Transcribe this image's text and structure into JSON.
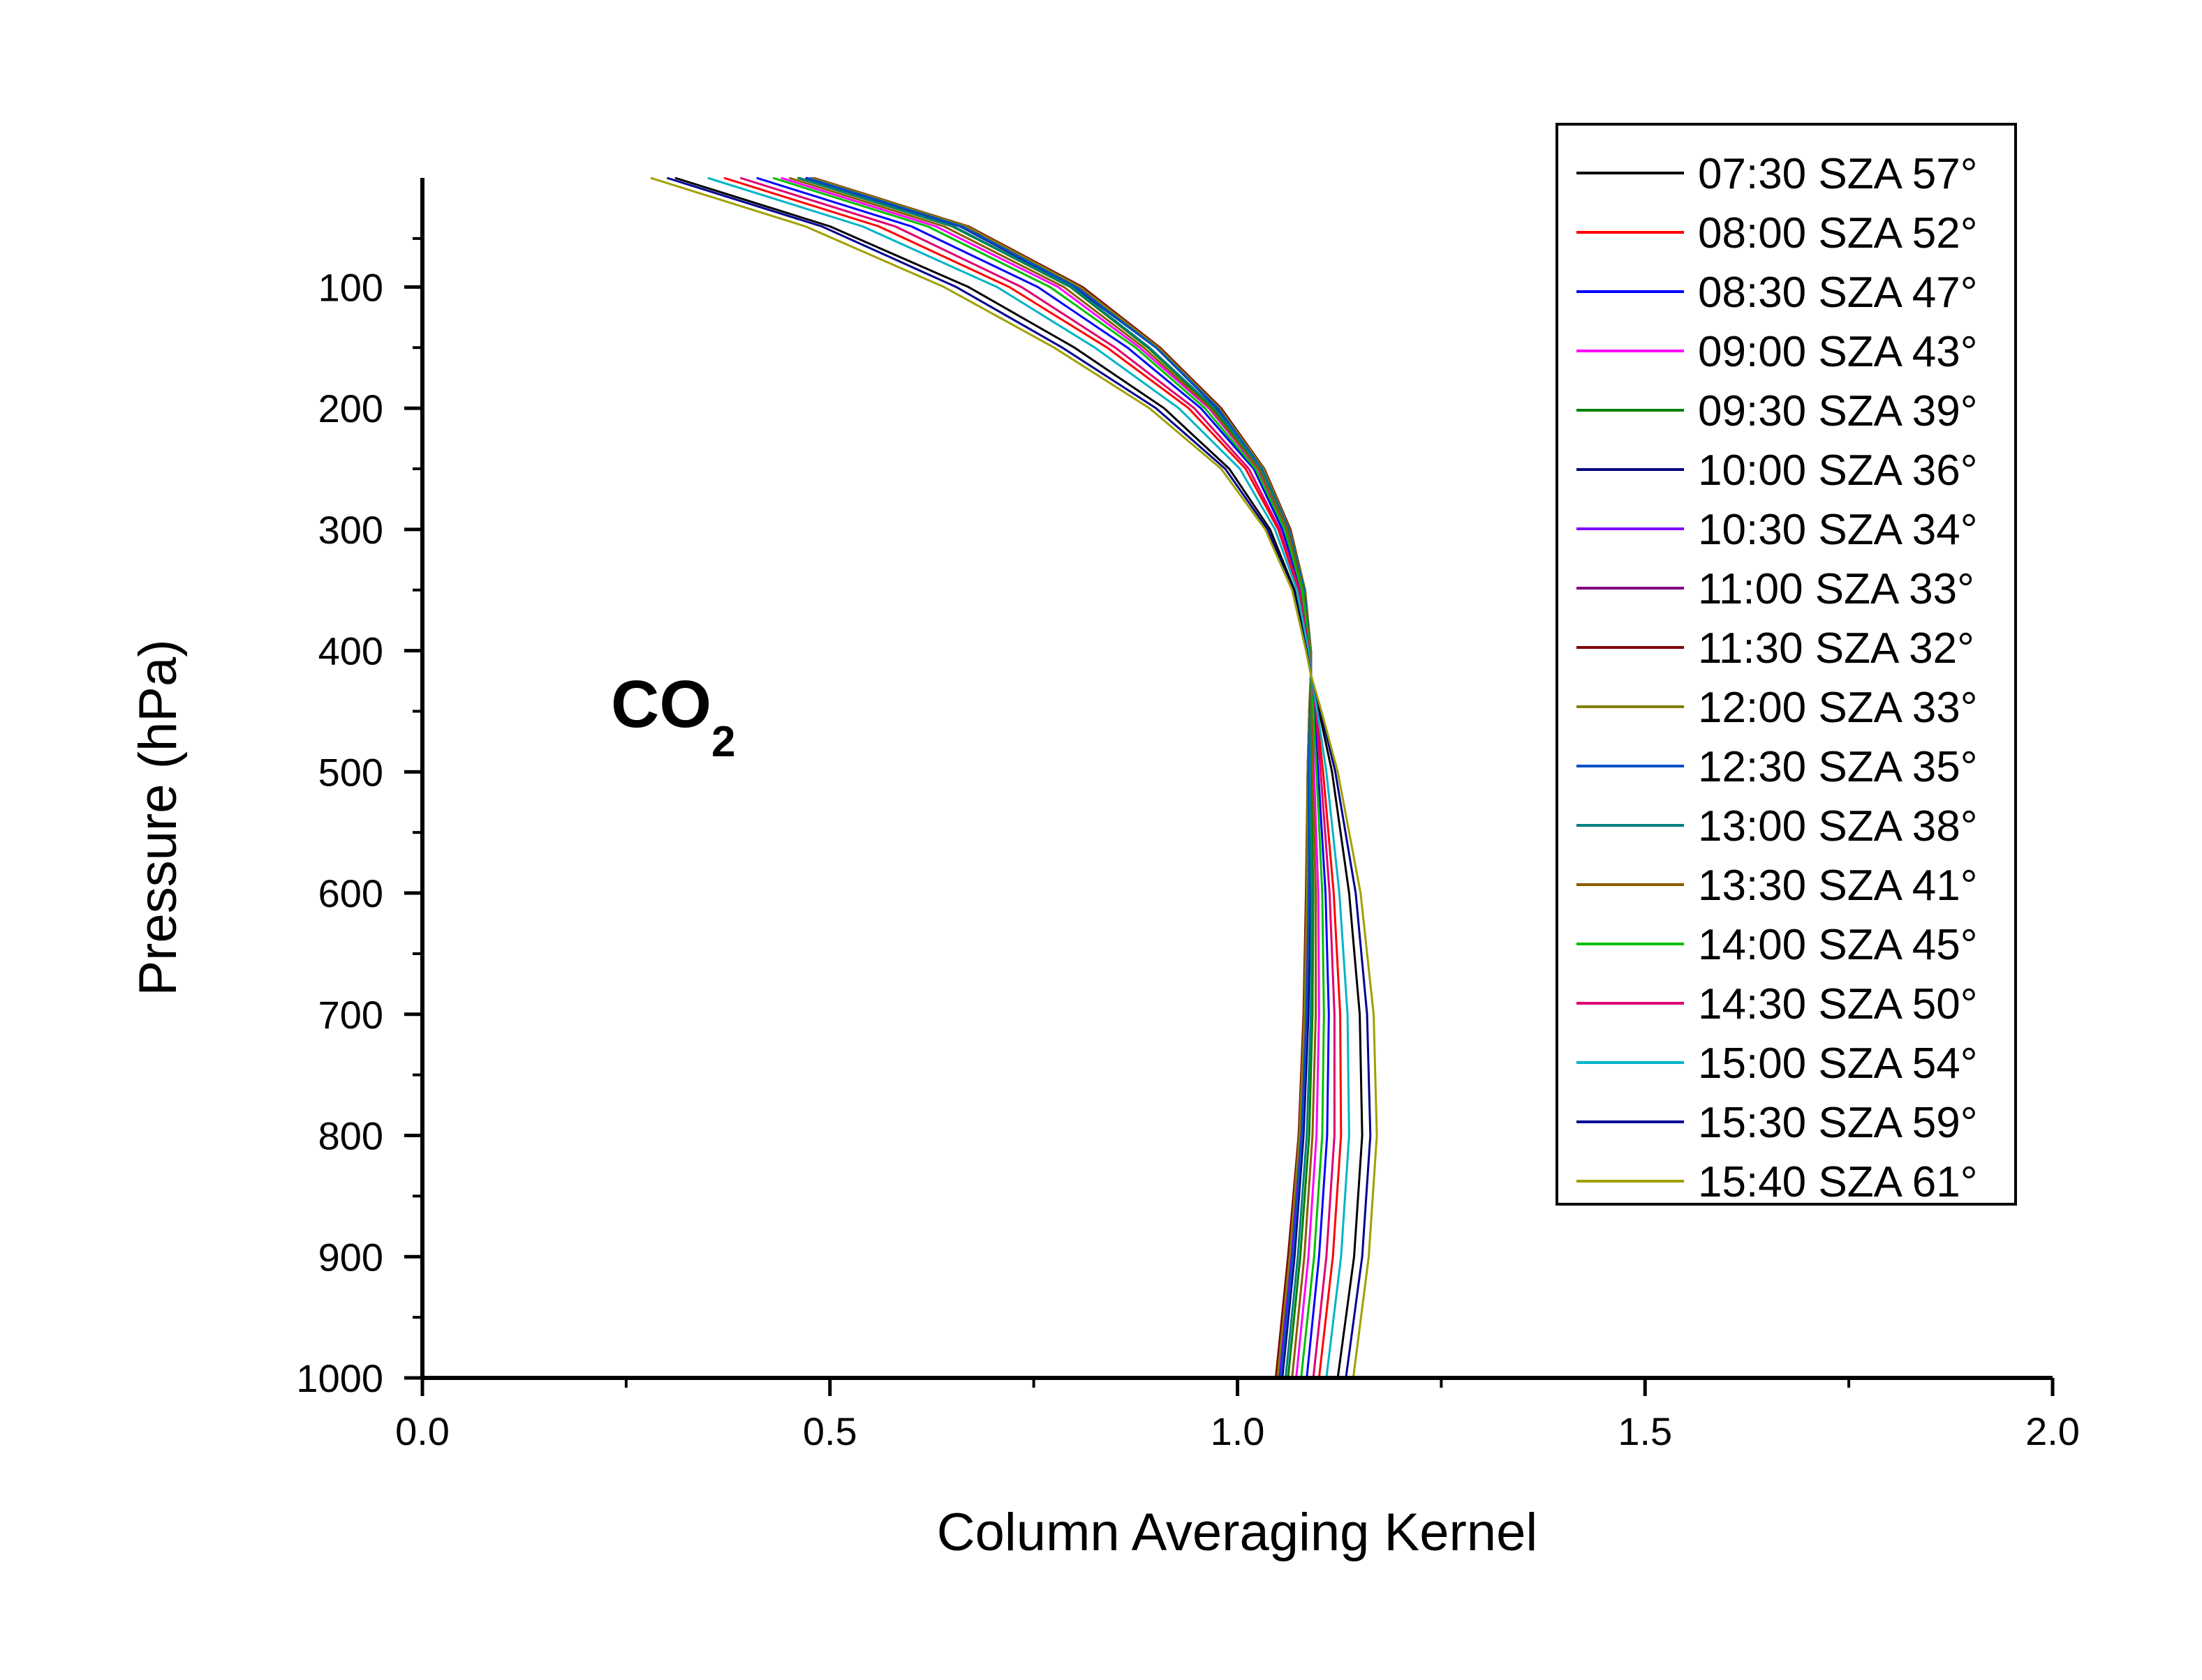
{
  "chart_data": {
    "type": "line",
    "title": "",
    "annotation": {
      "text": "CO",
      "subscript": "2"
    },
    "xlabel": "Column Averaging Kernel",
    "ylabel": "Pressure (hPa)",
    "xlim": [
      0.0,
      2.0
    ],
    "ylim": [
      1000,
      10
    ],
    "y_inverted": true,
    "x_ticks": [
      {
        "value": 0.0,
        "label": "0.0"
      },
      {
        "value": 0.5,
        "label": "0.5"
      },
      {
        "value": 1.0,
        "label": "1.0"
      },
      {
        "value": 1.5,
        "label": "1.5"
      },
      {
        "value": 2.0,
        "label": "2.0"
      }
    ],
    "y_ticks": [
      {
        "value": 100,
        "label": "100"
      },
      {
        "value": 200,
        "label": "200"
      },
      {
        "value": 300,
        "label": "300"
      },
      {
        "value": 400,
        "label": "400"
      },
      {
        "value": 500,
        "label": "500"
      },
      {
        "value": 600,
        "label": "600"
      },
      {
        "value": 700,
        "label": "700"
      },
      {
        "value": 800,
        "label": "800"
      },
      {
        "value": 900,
        "label": "900"
      },
      {
        "value": 1000,
        "label": "1000"
      }
    ],
    "pressure": [
      10,
      50,
      100,
      150,
      200,
      250,
      300,
      350,
      400,
      420,
      450,
      500,
      600,
      700,
      800,
      900,
      1000
    ],
    "grid": false,
    "legend_position": "top-right",
    "series": [
      {
        "name": "07:30 SZA 57°",
        "color": "#000000",
        "values": [
          0.31,
          0.5,
          0.67,
          0.8,
          0.91,
          0.99,
          1.04,
          1.07,
          1.085,
          1.09,
          1.1,
          1.116,
          1.137,
          1.15,
          1.153,
          1.143,
          1.123
        ]
      },
      {
        "name": "08:00 SZA 52°",
        "color": "#ff0000",
        "values": [
          0.37,
          0.56,
          0.72,
          0.84,
          0.94,
          1.01,
          1.05,
          1.075,
          1.088,
          1.09,
          1.097,
          1.105,
          1.118,
          1.126,
          1.127,
          1.117,
          1.1
        ]
      },
      {
        "name": "08:30 SZA 47°",
        "color": "#0000ff",
        "values": [
          0.41,
          0.6,
          0.755,
          0.865,
          0.955,
          1.02,
          1.055,
          1.078,
          1.089,
          1.09,
          1.094,
          1.099,
          1.108,
          1.112,
          1.11,
          1.1,
          1.085
        ]
      },
      {
        "name": "09:00 SZA 43°",
        "color": "#ff00ff",
        "values": [
          0.44,
          0.63,
          0.78,
          0.88,
          0.965,
          1.025,
          1.06,
          1.08,
          1.09,
          1.09,
          1.092,
          1.094,
          1.099,
          1.1,
          1.097,
          1.087,
          1.072
        ]
      },
      {
        "name": "09:30 SZA 39°",
        "color": "#008000",
        "values": [
          0.46,
          0.65,
          0.795,
          0.89,
          0.97,
          1.028,
          1.062,
          1.081,
          1.09,
          1.09,
          1.09,
          1.09,
          1.093,
          1.092,
          1.088,
          1.077,
          1.062
        ]
      },
      {
        "name": "10:00 SZA 36°",
        "color": "#000080",
        "values": [
          0.47,
          0.66,
          0.8,
          0.9,
          0.975,
          1.03,
          1.063,
          1.082,
          1.09,
          1.09,
          1.089,
          1.088,
          1.089,
          1.087,
          1.081,
          1.07,
          1.055
        ]
      },
      {
        "name": "10:30 SZA 34°",
        "color": "#8000ff",
        "values": [
          0.475,
          0.665,
          0.805,
          0.902,
          0.977,
          1.031,
          1.064,
          1.082,
          1.09,
          1.09,
          1.088,
          1.087,
          1.087,
          1.084,
          1.078,
          1.066,
          1.051
        ]
      },
      {
        "name": "11:00 SZA 33°",
        "color": "#800080",
        "values": [
          0.478,
          0.668,
          0.807,
          0.903,
          0.978,
          1.032,
          1.064,
          1.083,
          1.09,
          1.09,
          1.088,
          1.086,
          1.085,
          1.082,
          1.076,
          1.064,
          1.049
        ]
      },
      {
        "name": "11:30 SZA 32°",
        "color": "#800000",
        "values": [
          0.48,
          0.67,
          0.81,
          0.905,
          0.98,
          1.033,
          1.065,
          1.083,
          1.09,
          1.09,
          1.088,
          1.086,
          1.084,
          1.081,
          1.075,
          1.062,
          1.047
        ]
      },
      {
        "name": "12:00 SZA 33°",
        "color": "#808000",
        "values": [
          0.478,
          0.668,
          0.807,
          0.903,
          0.978,
          1.032,
          1.064,
          1.083,
          1.09,
          1.09,
          1.088,
          1.086,
          1.085,
          1.082,
          1.076,
          1.064,
          1.049
        ]
      },
      {
        "name": "12:30 SZA 35°",
        "color": "#0050c8",
        "values": [
          0.472,
          0.662,
          0.802,
          0.9,
          0.976,
          1.03,
          1.063,
          1.082,
          1.09,
          1.09,
          1.089,
          1.087,
          1.088,
          1.085,
          1.079,
          1.068,
          1.053
        ]
      },
      {
        "name": "13:00 SZA 38°",
        "color": "#008080",
        "values": [
          0.462,
          0.652,
          0.797,
          0.892,
          0.972,
          1.029,
          1.062,
          1.081,
          1.09,
          1.09,
          1.09,
          1.089,
          1.091,
          1.09,
          1.085,
          1.074,
          1.059
        ]
      },
      {
        "name": "13:30 SZA 41°",
        "color": "#8b5a00",
        "values": [
          0.45,
          0.64,
          0.787,
          0.885,
          0.967,
          1.026,
          1.061,
          1.08,
          1.09,
          1.09,
          1.091,
          1.092,
          1.096,
          1.096,
          1.092,
          1.082,
          1.067
        ]
      },
      {
        "name": "14:00 SZA 45°",
        "color": "#00c000",
        "values": [
          0.43,
          0.62,
          0.77,
          0.875,
          0.96,
          1.022,
          1.058,
          1.079,
          1.089,
          1.09,
          1.093,
          1.097,
          1.104,
          1.106,
          1.104,
          1.094,
          1.078
        ]
      },
      {
        "name": "14:30 SZA 50°",
        "color": "#e0006e",
        "values": [
          0.39,
          0.58,
          0.735,
          0.85,
          0.947,
          1.014,
          1.052,
          1.076,
          1.088,
          1.09,
          1.096,
          1.102,
          1.113,
          1.119,
          1.119,
          1.109,
          1.093
        ]
      },
      {
        "name": "15:00 SZA 54°",
        "color": "#00b4c8",
        "values": [
          0.35,
          0.54,
          0.705,
          0.825,
          0.928,
          1.003,
          1.046,
          1.073,
          1.087,
          1.09,
          1.098,
          1.109,
          1.125,
          1.135,
          1.137,
          1.127,
          1.109
        ]
      },
      {
        "name": "15:30 SZA 59°",
        "color": "#000090",
        "values": [
          0.3,
          0.49,
          0.655,
          0.785,
          0.9,
          0.985,
          1.037,
          1.068,
          1.085,
          1.09,
          1.102,
          1.12,
          1.145,
          1.159,
          1.163,
          1.153,
          1.133
        ]
      },
      {
        "name": "15:40 SZA 61°",
        "color": "#a0a000",
        "values": [
          0.28,
          0.47,
          0.64,
          0.775,
          0.892,
          0.98,
          1.034,
          1.067,
          1.084,
          1.09,
          1.103,
          1.123,
          1.151,
          1.167,
          1.171,
          1.161,
          1.142
        ]
      }
    ]
  }
}
